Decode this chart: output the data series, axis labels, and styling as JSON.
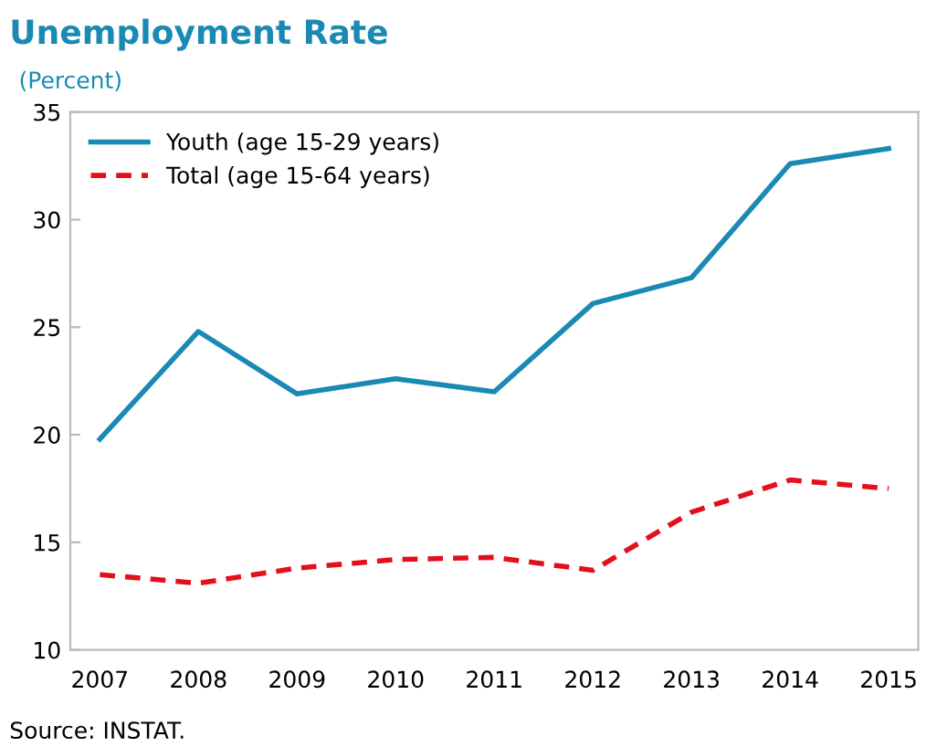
{
  "chart_data": {
    "type": "line",
    "title": "Unemployment Rate",
    "subtitle": "(Percent)",
    "categories": [
      "2007",
      "2008",
      "2009",
      "2010",
      "2011",
      "2012",
      "2013",
      "2014",
      "2015"
    ],
    "series": [
      {
        "name": "Youth (age 15-29 years)",
        "color": "#1a8ab4",
        "line_style": "solid",
        "values": [
          19.8,
          24.8,
          21.9,
          22.6,
          22.0,
          26.1,
          27.3,
          32.6,
          33.3
        ]
      },
      {
        "name": "Total (age 15-64 years)",
        "color": "#e3101c",
        "line_style": "dashed",
        "values": [
          13.5,
          13.1,
          13.8,
          14.2,
          14.3,
          13.7,
          16.4,
          17.9,
          17.5
        ]
      }
    ],
    "ylim": [
      10,
      35
    ],
    "yticks": [
      10,
      15,
      20,
      25,
      30,
      35
    ],
    "grid": false,
    "legend": "top left",
    "marker": "none",
    "annotations": [
      "Source: INSTAT."
    ]
  }
}
